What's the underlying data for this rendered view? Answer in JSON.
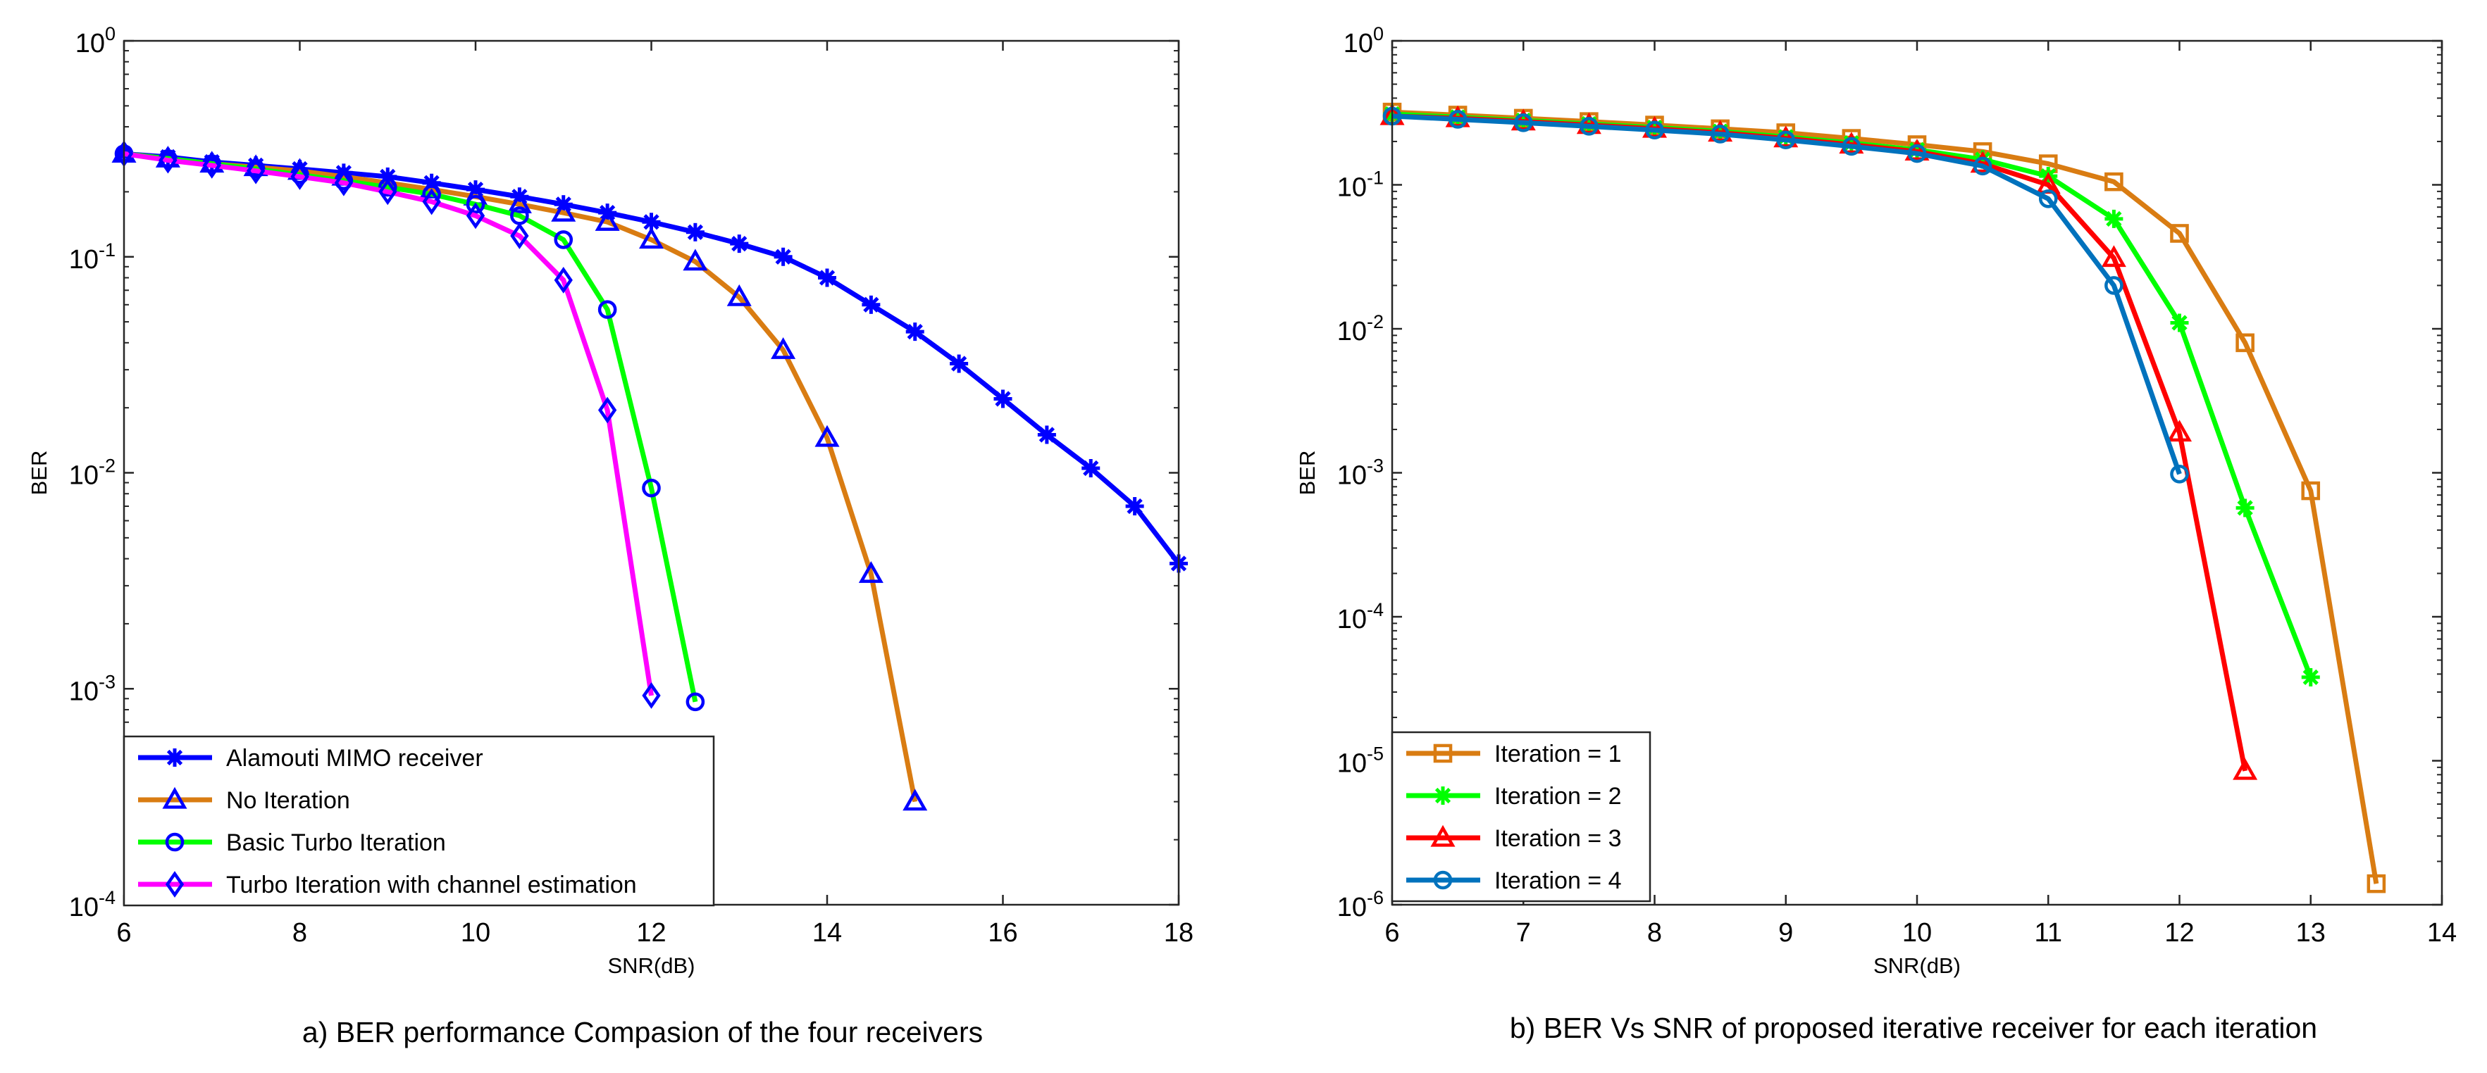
{
  "chart_data": [
    {
      "type": "line",
      "caption": "a) BER performance Compasion of the four receivers",
      "xlabel": "SNR(dB)",
      "ylabel": "BER",
      "xlim": [
        6,
        18
      ],
      "ylim": [
        0.0001,
        1
      ],
      "yscale": "log",
      "xticks": [
        6,
        8,
        10,
        12,
        14,
        16,
        18
      ],
      "yticks": [
        0.0001,
        0.001,
        0.01,
        0.1,
        1
      ],
      "grid": false,
      "legend_position": "bottom-left",
      "series": [
        {
          "name": "Alamouti MIMO receiver",
          "color": "#0000ff",
          "marker": "asterisk",
          "x": [
            6,
            6.5,
            7,
            7.5,
            8,
            8.5,
            9,
            9.5,
            10,
            10.5,
            11,
            11.5,
            12,
            12.5,
            13,
            13.5,
            14,
            14.5,
            15,
            15.5,
            16,
            16.5,
            17,
            17.5,
            18
          ],
          "y": [
            0.3,
            0.29,
            0.275,
            0.265,
            0.255,
            0.245,
            0.235,
            0.22,
            0.205,
            0.19,
            0.175,
            0.16,
            0.145,
            0.13,
            0.115,
            0.1,
            0.08,
            0.06,
            0.045,
            0.032,
            0.022,
            0.015,
            0.0105,
            0.007,
            0.0038
          ]
        },
        {
          "name": "No Iteration",
          "color": "#d97c12",
          "marker": "triangle",
          "x": [
            6,
            6.5,
            7,
            7.5,
            8,
            8.5,
            9,
            9.5,
            10,
            10.5,
            11,
            11.5,
            12,
            12.5,
            13,
            13.5,
            14,
            14.5,
            15
          ],
          "y": [
            0.3,
            0.285,
            0.27,
            0.26,
            0.25,
            0.235,
            0.22,
            0.205,
            0.19,
            0.175,
            0.16,
            0.145,
            0.12,
            0.095,
            0.065,
            0.037,
            0.0145,
            0.0034,
            0.0003
          ]
        },
        {
          "name": "Basic Turbo Iteration",
          "color": "#00ff00",
          "marker": "circle",
          "x": [
            6,
            6.5,
            7,
            7.5,
            8,
            8.5,
            9,
            9.5,
            10,
            10.5,
            11,
            11.5,
            12,
            12.5
          ],
          "y": [
            0.3,
            0.285,
            0.27,
            0.255,
            0.24,
            0.225,
            0.21,
            0.195,
            0.175,
            0.155,
            0.12,
            0.057,
            0.0085,
            0.00087
          ]
        },
        {
          "name": "Turbo Iteration with channel estimation",
          "color": "#ff00ff",
          "marker": "diamond",
          "x": [
            6,
            6.5,
            7,
            7.5,
            8,
            8.5,
            9,
            9.5,
            10,
            10.5,
            11,
            11.5,
            12
          ],
          "y": [
            0.3,
            0.28,
            0.265,
            0.25,
            0.235,
            0.22,
            0.2,
            0.18,
            0.155,
            0.125,
            0.078,
            0.0195,
            0.00093
          ]
        }
      ]
    },
    {
      "type": "line",
      "caption": "b) BER Vs SNR of proposed iterative receiver for each iteration",
      "xlabel": "SNR(dB)",
      "ylabel": "BER",
      "xlim": [
        6,
        14
      ],
      "ylim": [
        1e-06,
        1
      ],
      "yscale": "log",
      "xticks": [
        6,
        7,
        8,
        9,
        10,
        11,
        12,
        13,
        14
      ],
      "yticks": [
        1e-06,
        1e-05,
        0.0001,
        0.001,
        0.01,
        0.1,
        1
      ],
      "grid": false,
      "legend_position": "bottom-left",
      "series": [
        {
          "name": "Iteration = 1",
          "color": "#d97c12",
          "marker": "square",
          "x": [
            6,
            6.5,
            7,
            7.5,
            8,
            8.5,
            9,
            9.5,
            10,
            10.5,
            11,
            11.5,
            12,
            12.5,
            13,
            13.5
          ],
          "y": [
            0.32,
            0.305,
            0.29,
            0.275,
            0.26,
            0.245,
            0.23,
            0.21,
            0.19,
            0.17,
            0.14,
            0.105,
            0.046,
            0.008,
            0.00075,
            1.4e-06
          ]
        },
        {
          "name": "Iteration = 2",
          "color": "#00ff00",
          "marker": "asterisk",
          "x": [
            6,
            6.5,
            7,
            7.5,
            8,
            8.5,
            9,
            9.5,
            10,
            10.5,
            11,
            11.5,
            12,
            12.5,
            13
          ],
          "y": [
            0.31,
            0.295,
            0.28,
            0.265,
            0.25,
            0.235,
            0.215,
            0.195,
            0.175,
            0.15,
            0.115,
            0.058,
            0.011,
            0.00057,
            3.8e-05
          ]
        },
        {
          "name": "Iteration = 3",
          "color": "#ff0000",
          "marker": "triangle",
          "x": [
            6,
            6.5,
            7,
            7.5,
            8,
            8.5,
            9,
            9.5,
            10,
            10.5,
            11,
            11.5,
            12,
            12.5
          ],
          "y": [
            0.3,
            0.29,
            0.275,
            0.26,
            0.245,
            0.23,
            0.21,
            0.19,
            0.17,
            0.14,
            0.1,
            0.031,
            0.0019,
            8.5e-06
          ]
        },
        {
          "name": "Iteration = 4",
          "color": "#0072bd",
          "marker": "circle",
          "x": [
            6,
            6.5,
            7,
            7.5,
            8,
            8.5,
            9,
            9.5,
            10,
            10.5,
            11,
            11.5,
            12
          ],
          "y": [
            0.3,
            0.285,
            0.27,
            0.255,
            0.24,
            0.225,
            0.205,
            0.185,
            0.165,
            0.135,
            0.08,
            0.02,
            0.00098
          ]
        }
      ]
    }
  ]
}
